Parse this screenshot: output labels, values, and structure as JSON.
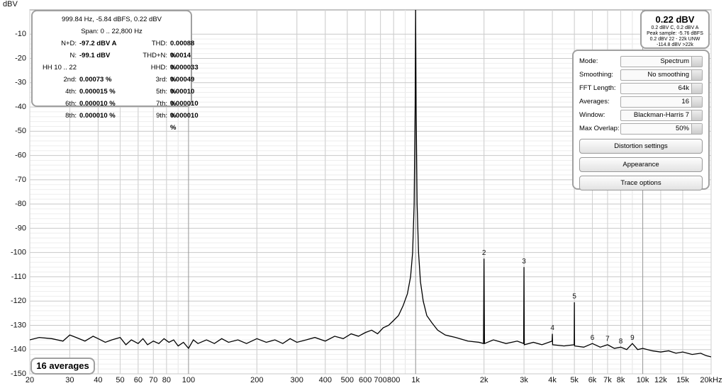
{
  "chart_data": {
    "type": "line",
    "y_label": "dBV",
    "color": "#000000",
    "log_x": true,
    "grid": true,
    "xlim": [
      20,
      20000
    ],
    "ylim": [
      -150,
      0
    ],
    "yticks": [
      -150,
      -140,
      -130,
      -120,
      -110,
      -100,
      -90,
      -80,
      -70,
      -60,
      -50,
      -40,
      -30,
      -20,
      -10
    ],
    "xticks": [
      20,
      30,
      40,
      50,
      60,
      70,
      80,
      100,
      200,
      300,
      400,
      500,
      600,
      700,
      800,
      {
        "value": 1000,
        "label": "1k"
      },
      {
        "value": 2000,
        "label": "2k"
      },
      {
        "value": 3000,
        "label": "3k"
      },
      {
        "value": 4000,
        "label": "4k"
      },
      {
        "value": 5000,
        "label": "5k"
      },
      {
        "value": 6000,
        "label": "6k"
      },
      {
        "value": 7000,
        "label": "7k"
      },
      {
        "value": 8000,
        "label": "8k"
      },
      {
        "value": 10000,
        "label": "10k"
      },
      {
        "value": 12000,
        "label": "12k"
      },
      {
        "value": 15000,
        "label": "15k"
      },
      {
        "value": 20000,
        "label": "20kHz"
      }
    ],
    "x": [
      20,
      22,
      25,
      28,
      30,
      32,
      35,
      38,
      40,
      43,
      46,
      50,
      53,
      56,
      60,
      63,
      66,
      70,
      74,
      78,
      82,
      86,
      90,
      95,
      100,
      105,
      110,
      120,
      130,
      140,
      150,
      165,
      180,
      200,
      220,
      240,
      260,
      280,
      300,
      330,
      360,
      400,
      440,
      480,
      520,
      560,
      600,
      640,
      680,
      720,
      760,
      800,
      840,
      880,
      920,
      950,
      970,
      985,
      995,
      999.84,
      1005,
      1015,
      1030,
      1050,
      1080,
      1120,
      1180,
      1250,
      1350,
      1500,
      1700,
      1900,
      1990,
      2000,
      2010,
      2200,
      2500,
      2800,
      2990,
      3000,
      3010,
      3300,
      3600,
      3990,
      4000,
      4010,
      4500,
      4990,
      5000,
      5010,
      5500,
      6000,
      6500,
      7000,
      7500,
      8000,
      8500,
      9000,
      9500,
      10000,
      11000,
      12000,
      13000,
      14000,
      15000,
      16500,
      18000,
      19000,
      20000
    ],
    "values": [
      -136,
      -135,
      -135.5,
      -136.5,
      -134,
      -135,
      -136.5,
      -134.5,
      -135.5,
      -137,
      -136,
      -135,
      -138,
      -136,
      -137.5,
      -135.5,
      -138,
      -136.5,
      -137.5,
      -135.5,
      -137,
      -136,
      -138.5,
      -137,
      -139.5,
      -136,
      -137.5,
      -136,
      -137.5,
      -135.5,
      -137,
      -136,
      -137.5,
      -135.5,
      -137,
      -136,
      -137.5,
      -135.5,
      -137,
      -136,
      -135,
      -136.5,
      -134.5,
      -135.5,
      -133.5,
      -134.5,
      -133,
      -132,
      -133.5,
      -131,
      -130,
      -128,
      -126,
      -122,
      -117,
      -110,
      -100,
      -80,
      -40,
      0,
      -40,
      -80,
      -100,
      -112,
      -120,
      -126,
      -129,
      -132,
      -134,
      -135,
      -136.5,
      -137,
      -137.5,
      -102.5,
      -137.5,
      -136,
      -137.5,
      -136.5,
      -137.5,
      -106,
      -138,
      -137,
      -138,
      -136.5,
      -133.5,
      -138,
      -138.5,
      -138,
      -120.5,
      -138.5,
      -139,
      -137.5,
      -139,
      -138,
      -139.5,
      -139,
      -140,
      -137.5,
      -140,
      -139.5,
      -140.5,
      -141,
      -140.5,
      -141.5,
      -141,
      -142,
      -141.5,
      -142.5,
      -143
    ],
    "annotations": [
      {
        "text": "2",
        "x": 2000,
        "y": -102.5
      },
      {
        "text": "3",
        "x": 3000,
        "y": -106
      },
      {
        "text": "4",
        "x": 4000,
        "y": -133.5
      },
      {
        "text": "5",
        "x": 5000,
        "y": -120.5
      },
      {
        "text": "6",
        "x": 6000,
        "y": -137.5
      },
      {
        "text": "7",
        "x": 7000,
        "y": -138
      },
      {
        "text": "8",
        "x": 8000,
        "y": -139
      },
      {
        "text": "9",
        "x": 9000,
        "y": -137.5
      }
    ]
  },
  "info_panel": {
    "header": "999.84 Hz, -5.84 dBFS, 0.22 dBV",
    "span": "Span: 0 .. 22,800 Hz",
    "rows": [
      [
        {
          "label": "N+D:",
          "value": "-97.2 dBV A"
        },
        {
          "label": "THD:",
          "value": "0.00088 %"
        }
      ],
      [
        {
          "label": "N:",
          "value": "-99.1 dBV"
        },
        {
          "label": "THD+N:",
          "value": "0.0014 %"
        }
      ],
      [
        {
          "label": "HH 10 .. 22"
        },
        {
          "label": "HHD:",
          "value": "0.000033 %"
        }
      ],
      [
        {
          "label": "2nd:",
          "value": "0.00073 %"
        },
        {
          "label": "3rd:",
          "value": "0.00049 %"
        }
      ],
      [
        {
          "label": "4th:",
          "value": "0.000015 %"
        },
        {
          "label": "5th:",
          "value": "0.00010 %"
        }
      ],
      [
        {
          "label": "6th:",
          "value": "0.000010 %"
        },
        {
          "label": "7th:",
          "value": "0.000010 %"
        }
      ],
      [
        {
          "label": "8th:",
          "value": "0.000010 %"
        },
        {
          "label": "9th:",
          "value": "0.000010 %"
        }
      ]
    ]
  },
  "readout": {
    "level": "0.22 dBV",
    "lines": [
      "0.2 dBV C, 0.2 dBV A",
      "Peak sample: -5.76 dBFS",
      "0.2 dBV 22 - 22k UNW",
      "-114.8 dBV >22k"
    ]
  },
  "controls": {
    "fields": [
      {
        "label": "Mode:",
        "value": "Spectrum"
      },
      {
        "label": "Smoothing:",
        "value": "No  smoothing"
      },
      {
        "label": "FFT Length:",
        "value": "64k"
      },
      {
        "label": "Averages:",
        "value": "16"
      },
      {
        "label": "Window:",
        "value": "Blackman-Harris 7"
      },
      {
        "label": "Max Overlap:",
        "value": "50%"
      }
    ],
    "buttons": [
      "Distortion settings",
      "Appearance",
      "Trace options"
    ]
  },
  "averages_badge": "16 averages"
}
